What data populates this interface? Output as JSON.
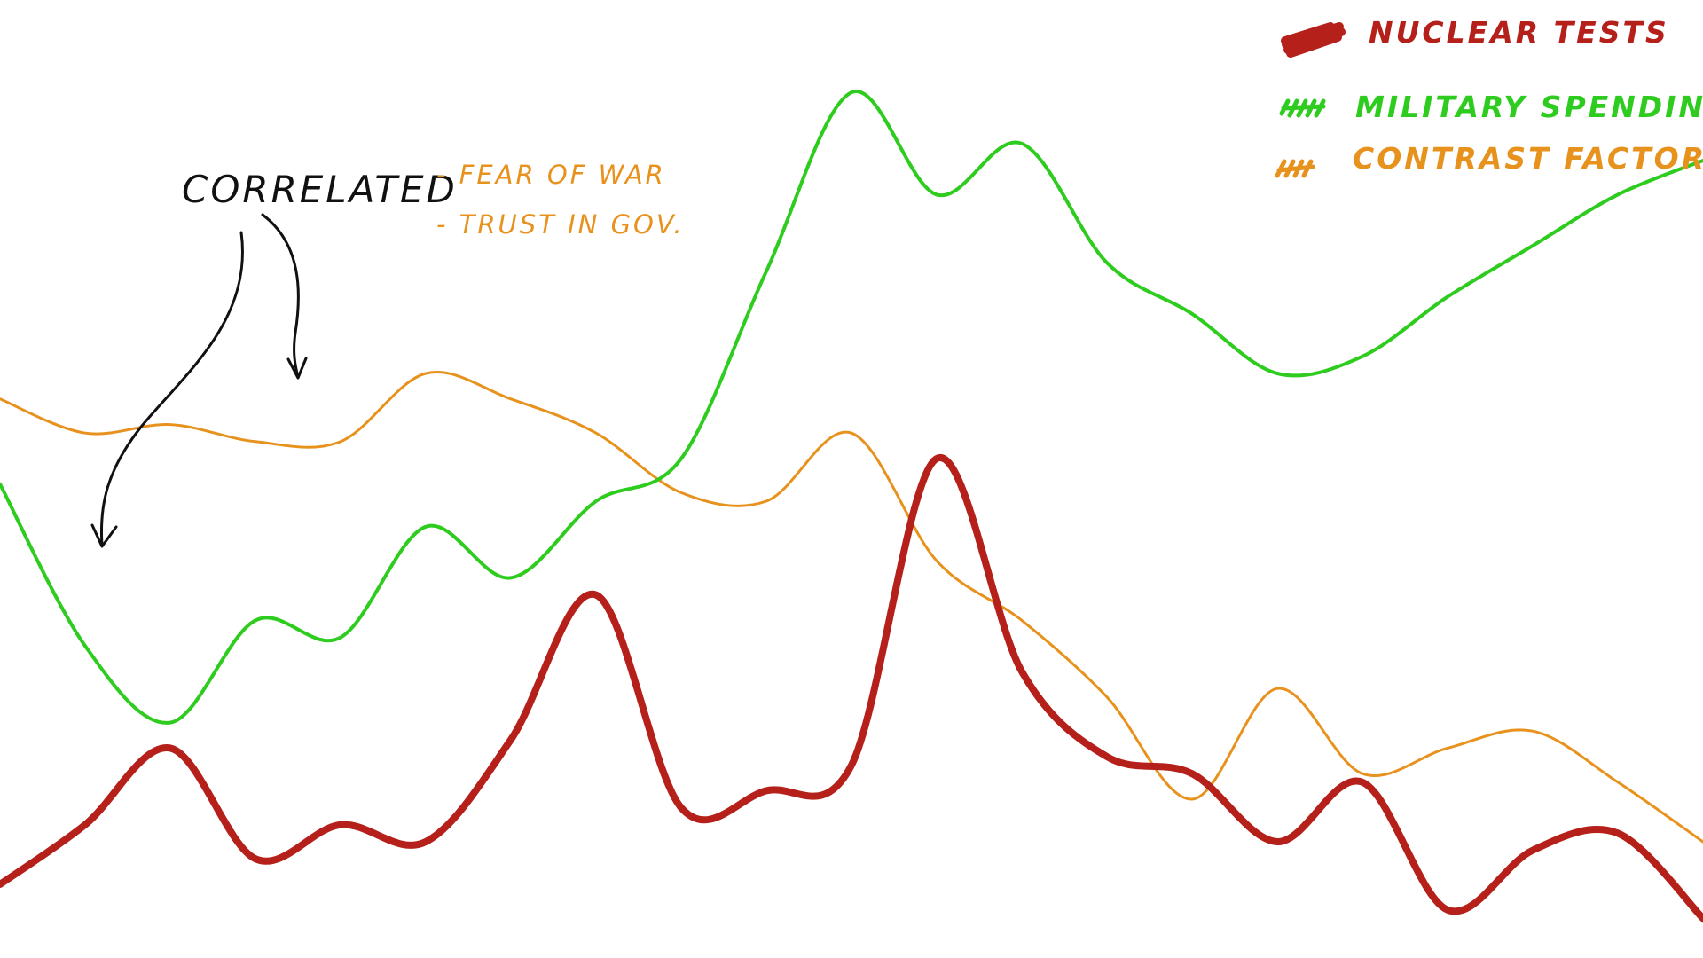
{
  "chart_data": {
    "type": "line",
    "title": "",
    "xlabel": "",
    "ylabel": "",
    "x": [
      0,
      5,
      10,
      15,
      20,
      25,
      30,
      35,
      40,
      45,
      50,
      55,
      60,
      65,
      70,
      75,
      80,
      85,
      90,
      95,
      100
    ],
    "xlim": [
      0,
      100
    ],
    "ylim": [
      0,
      100
    ],
    "grid": false,
    "legend_position": "top-right",
    "series": [
      {
        "name": "Nuclear tests",
        "color": "#b5201a",
        "values": [
          5,
          12,
          21,
          8,
          12,
          10,
          22,
          39,
          14,
          16,
          19,
          55,
          30,
          20,
          18,
          10,
          17,
          2,
          9,
          11,
          1
        ]
      },
      {
        "name": "Military spending",
        "color": "#2ecc1f",
        "values": [
          52,
          33,
          24,
          36,
          34,
          47,
          41,
          50,
          55,
          77,
          98,
          86,
          92,
          78,
          72,
          65,
          67,
          74,
          80,
          86,
          90
        ]
      },
      {
        "name": "Contrast factor",
        "color": "#e8921e",
        "values": [
          62,
          58,
          59,
          57,
          57,
          65,
          62,
          58,
          51,
          50,
          58,
          43,
          36,
          27,
          15,
          28,
          18,
          21,
          23,
          17,
          10
        ]
      }
    ]
  },
  "legend": {
    "items": [
      {
        "label": "Nuclear tests",
        "color": "#b5201a"
      },
      {
        "label": "Military spending",
        "color": "#2ecc1f"
      },
      {
        "label": "Contrast factor",
        "color": "#e8921e"
      }
    ]
  },
  "annotation": {
    "correlated": "Correlated",
    "line1": "- Fear of war",
    "line2": "- Trust in gov."
  }
}
